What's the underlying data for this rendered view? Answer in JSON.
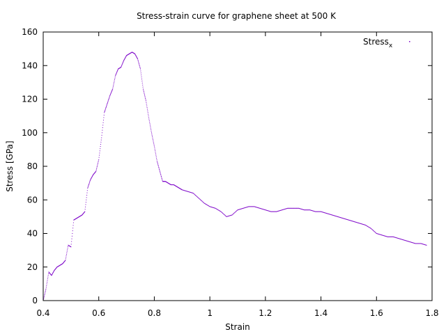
{
  "chart_data": {
    "type": "scatter",
    "title": "Stress-strain curve for graphene sheet at 500 K",
    "xlabel": "Strain",
    "ylabel": "Stress [GPa]",
    "xlim": [
      0.4,
      1.8
    ],
    "ylim": [
      0,
      160
    ],
    "xticks": [
      0.4,
      0.6,
      0.8,
      1.0,
      1.2,
      1.4,
      1.6,
      1.8
    ],
    "xtick_labels": [
      "0.4",
      "0.6",
      "0.8",
      "1",
      "1.2",
      "1.4",
      "1.6",
      "1.8"
    ],
    "yticks": [
      0,
      20,
      40,
      60,
      80,
      100,
      120,
      140,
      160
    ],
    "ytick_labels": [
      "0",
      "20",
      "40",
      "60",
      "80",
      "100",
      "120",
      "140",
      "160"
    ],
    "grid": false,
    "legend_position": "top-right",
    "series": [
      {
        "name_base": "Stress",
        "name_sub": "x",
        "color": "#7b00c8",
        "marker": "dots",
        "x": [
          0.4,
          0.41,
          0.42,
          0.43,
          0.44,
          0.45,
          0.46,
          0.47,
          0.48,
          0.49,
          0.5,
          0.51,
          0.52,
          0.53,
          0.54,
          0.55,
          0.56,
          0.57,
          0.58,
          0.59,
          0.6,
          0.61,
          0.62,
          0.63,
          0.64,
          0.65,
          0.66,
          0.67,
          0.68,
          0.69,
          0.7,
          0.71,
          0.72,
          0.73,
          0.74,
          0.75,
          0.76,
          0.77,
          0.78,
          0.79,
          0.8,
          0.81,
          0.82,
          0.83,
          0.84,
          0.85,
          0.86,
          0.87,
          0.88,
          0.89,
          0.9,
          0.92,
          0.94,
          0.96,
          0.98,
          1.0,
          1.02,
          1.04,
          1.06,
          1.08,
          1.1,
          1.12,
          1.14,
          1.16,
          1.18,
          1.2,
          1.22,
          1.24,
          1.26,
          1.28,
          1.3,
          1.32,
          1.34,
          1.36,
          1.38,
          1.4,
          1.42,
          1.44,
          1.46,
          1.48,
          1.5,
          1.52,
          1.54,
          1.56,
          1.58,
          1.6,
          1.62,
          1.64,
          1.66,
          1.68,
          1.7,
          1.72,
          1.74,
          1.76,
          1.78
        ],
        "y": [
          0,
          7,
          17,
          15,
          18,
          20,
          21,
          22,
          24,
          33,
          32,
          48,
          49,
          50,
          51,
          53,
          67,
          72,
          75,
          77,
          84,
          97,
          112,
          117,
          122,
          126,
          134,
          138,
          139,
          143,
          146,
          147,
          148,
          147,
          144,
          138,
          126,
          119,
          109,
          100,
          92,
          83,
          77,
          71,
          71,
          70,
          69,
          69,
          68,
          67,
          66,
          65,
          64,
          61,
          58,
          56,
          55,
          53,
          50,
          51,
          54,
          55,
          56,
          56,
          55,
          54,
          53,
          53,
          54,
          55,
          55,
          55,
          54,
          54,
          53,
          53,
          52,
          51,
          50,
          49,
          48,
          47,
          46,
          45,
          43,
          40,
          39,
          38,
          38,
          37,
          36,
          35,
          34,
          34,
          33
        ]
      }
    ]
  }
}
